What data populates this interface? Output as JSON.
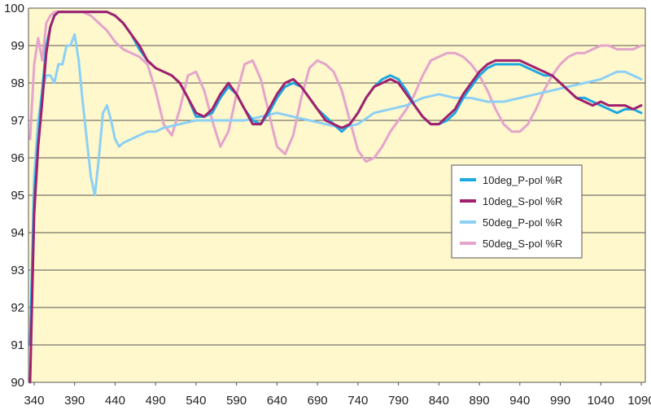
{
  "chart_data": {
    "type": "line",
    "title": "",
    "xlabel": "",
    "ylabel": "",
    "xlim": [
      333,
      1095
    ],
    "ylim": [
      90,
      100
    ],
    "xticks": [
      340,
      390,
      440,
      490,
      540,
      590,
      640,
      690,
      740,
      790,
      840,
      890,
      940,
      990,
      1040,
      1090
    ],
    "yticks": [
      90,
      91,
      92,
      93,
      94,
      95,
      96,
      97,
      98,
      99,
      100
    ],
    "grid": "horizontal",
    "background": "#FFF8CC",
    "legend_position": "right",
    "series": [
      {
        "name": "10deg_P-pol %R",
        "color": "#1CA8E0",
        "x": [
          335,
          340,
          345,
          350,
          355,
          360,
          365,
          370,
          375,
          380,
          390,
          400,
          410,
          420,
          430,
          440,
          450,
          460,
          470,
          480,
          490,
          500,
          510,
          520,
          530,
          540,
          550,
          560,
          570,
          580,
          590,
          600,
          610,
          620,
          630,
          640,
          650,
          660,
          670,
          680,
          690,
          700,
          710,
          720,
          730,
          740,
          750,
          760,
          770,
          780,
          790,
          800,
          810,
          820,
          830,
          840,
          850,
          860,
          870,
          880,
          890,
          900,
          910,
          920,
          930,
          940,
          950,
          960,
          970,
          980,
          990,
          1000,
          1010,
          1020,
          1030,
          1040,
          1050,
          1060,
          1070,
          1080,
          1090
        ],
        "y": [
          91.0,
          95.0,
          96.5,
          97.8,
          99.0,
          99.5,
          99.8,
          99.9,
          99.9,
          99.9,
          99.9,
          99.9,
          99.9,
          99.9,
          99.9,
          99.8,
          99.6,
          99.3,
          98.9,
          98.6,
          98.4,
          98.3,
          98.2,
          98.0,
          97.6,
          97.1,
          97.1,
          97.2,
          97.6,
          97.9,
          97.7,
          97.3,
          97.0,
          96.9,
          97.2,
          97.6,
          97.9,
          98.0,
          97.9,
          97.6,
          97.3,
          97.1,
          96.9,
          96.7,
          96.9,
          97.2,
          97.6,
          97.9,
          98.1,
          98.2,
          98.1,
          97.8,
          97.4,
          97.1,
          96.9,
          96.9,
          97.0,
          97.2,
          97.6,
          97.9,
          98.2,
          98.4,
          98.5,
          98.5,
          98.5,
          98.5,
          98.4,
          98.3,
          98.2,
          98.2,
          98.0,
          97.8,
          97.6,
          97.6,
          97.5,
          97.4,
          97.3,
          97.2,
          97.3,
          97.3,
          97.2
        ]
      },
      {
        "name": "10deg_S-pol %R",
        "color": "#A0206E",
        "x": [
          335,
          340,
          345,
          350,
          355,
          360,
          365,
          370,
          375,
          380,
          390,
          400,
          410,
          420,
          430,
          440,
          450,
          460,
          470,
          480,
          490,
          500,
          510,
          520,
          530,
          540,
          550,
          560,
          570,
          580,
          590,
          600,
          610,
          620,
          630,
          640,
          650,
          660,
          670,
          680,
          690,
          700,
          710,
          720,
          730,
          740,
          750,
          760,
          770,
          780,
          790,
          800,
          810,
          820,
          830,
          840,
          850,
          860,
          870,
          880,
          890,
          900,
          910,
          920,
          930,
          940,
          950,
          960,
          970,
          980,
          990,
          1000,
          1010,
          1020,
          1030,
          1040,
          1050,
          1060,
          1070,
          1080,
          1090
        ],
        "y": [
          90.0,
          94.5,
          96.3,
          97.5,
          98.8,
          99.5,
          99.8,
          99.9,
          99.9,
          99.9,
          99.9,
          99.9,
          99.9,
          99.9,
          99.9,
          99.8,
          99.6,
          99.3,
          99.0,
          98.6,
          98.4,
          98.3,
          98.2,
          98.0,
          97.6,
          97.2,
          97.1,
          97.3,
          97.7,
          98.0,
          97.7,
          97.3,
          96.9,
          96.9,
          97.3,
          97.7,
          98.0,
          98.1,
          97.9,
          97.6,
          97.3,
          97.0,
          96.9,
          96.8,
          96.9,
          97.2,
          97.6,
          97.9,
          98.0,
          98.1,
          98.0,
          97.7,
          97.4,
          97.1,
          96.9,
          96.9,
          97.1,
          97.3,
          97.7,
          98.0,
          98.3,
          98.5,
          98.6,
          98.6,
          98.6,
          98.6,
          98.5,
          98.4,
          98.3,
          98.2,
          98.0,
          97.8,
          97.6,
          97.5,
          97.4,
          97.5,
          97.4,
          97.4,
          97.4,
          97.3,
          97.4
        ]
      },
      {
        "name": "50deg_P-pol %R",
        "color": "#8CD0F5",
        "x": [
          335,
          340,
          345,
          350,
          355,
          360,
          365,
          370,
          375,
          380,
          385,
          390,
          395,
          400,
          405,
          410,
          415,
          420,
          425,
          430,
          435,
          440,
          445,
          450,
          460,
          470,
          480,
          490,
          500,
          520,
          540,
          560,
          580,
          600,
          620,
          640,
          660,
          680,
          700,
          720,
          740,
          760,
          780,
          800,
          820,
          840,
          860,
          880,
          900,
          920,
          940,
          960,
          980,
          1000,
          1020,
          1040,
          1050,
          1060,
          1070,
          1080,
          1090
        ],
        "y": [
          91.0,
          95.5,
          97.0,
          97.8,
          98.2,
          98.2,
          98.0,
          98.5,
          98.5,
          99.0,
          99.0,
          99.3,
          98.6,
          97.5,
          96.5,
          95.5,
          95.0,
          96.0,
          97.2,
          97.4,
          97.0,
          96.5,
          96.3,
          96.4,
          96.5,
          96.6,
          96.7,
          96.7,
          96.8,
          96.9,
          97.0,
          97.0,
          97.0,
          97.0,
          97.1,
          97.2,
          97.1,
          97.0,
          96.9,
          96.8,
          96.9,
          97.2,
          97.3,
          97.4,
          97.6,
          97.7,
          97.6,
          97.6,
          97.5,
          97.5,
          97.6,
          97.7,
          97.8,
          97.9,
          98.0,
          98.1,
          98.2,
          98.3,
          98.3,
          98.2,
          98.1
        ]
      },
      {
        "name": "50deg_S-pol %R",
        "color": "#E4A4CC",
        "x": [
          335,
          340,
          345,
          350,
          355,
          360,
          365,
          370,
          380,
          390,
          400,
          410,
          420,
          430,
          440,
          450,
          460,
          470,
          480,
          490,
          500,
          510,
          520,
          530,
          540,
          550,
          560,
          570,
          580,
          590,
          600,
          610,
          620,
          630,
          640,
          650,
          660,
          670,
          680,
          690,
          700,
          710,
          720,
          730,
          740,
          750,
          760,
          770,
          780,
          790,
          800,
          810,
          820,
          830,
          840,
          850,
          860,
          870,
          880,
          890,
          900,
          910,
          920,
          930,
          940,
          950,
          960,
          970,
          980,
          990,
          1000,
          1010,
          1020,
          1030,
          1040,
          1050,
          1060,
          1070,
          1080,
          1090
        ],
        "y": [
          96.5,
          98.5,
          99.2,
          98.6,
          99.6,
          99.8,
          99.9,
          99.9,
          99.9,
          99.9,
          99.9,
          99.8,
          99.6,
          99.4,
          99.1,
          98.9,
          98.8,
          98.7,
          98.5,
          97.8,
          96.9,
          96.6,
          97.3,
          98.2,
          98.3,
          97.8,
          97.0,
          96.3,
          96.7,
          97.7,
          98.5,
          98.6,
          98.1,
          97.2,
          96.3,
          96.1,
          96.6,
          97.6,
          98.4,
          98.6,
          98.5,
          98.3,
          97.8,
          97.0,
          96.2,
          95.9,
          96.0,
          96.3,
          96.7,
          97.0,
          97.3,
          97.7,
          98.2,
          98.6,
          98.7,
          98.8,
          98.8,
          98.7,
          98.5,
          98.2,
          97.8,
          97.3,
          96.9,
          96.7,
          96.7,
          96.9,
          97.3,
          97.8,
          98.2,
          98.5,
          98.7,
          98.8,
          98.8,
          98.9,
          99.0,
          99.0,
          98.9,
          98.9,
          98.9,
          99.0
        ]
      }
    ]
  }
}
